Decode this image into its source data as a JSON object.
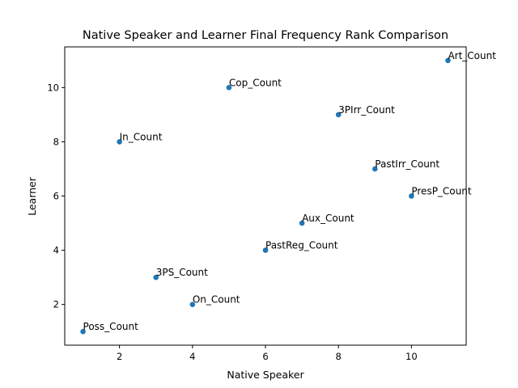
{
  "chart_data": {
    "type": "scatter",
    "title": "Native Speaker and Learner Final Frequency Rank Comparison",
    "xlabel": "Native Speaker",
    "ylabel": "Learner",
    "xlim": [
      0.5,
      11.5
    ],
    "ylim": [
      0.5,
      11.5
    ],
    "xticks": [
      2,
      4,
      6,
      8,
      10
    ],
    "yticks": [
      2,
      4,
      6,
      8,
      10
    ],
    "grid": false,
    "marker_color": "#1f77b4",
    "points": [
      {
        "label": "Poss_Count",
        "x": 1,
        "y": 1
      },
      {
        "label": "In_Count",
        "x": 2,
        "y": 8
      },
      {
        "label": "3PS_Count",
        "x": 3,
        "y": 3
      },
      {
        "label": "On_Count",
        "x": 4,
        "y": 2
      },
      {
        "label": "Cop_Count",
        "x": 5,
        "y": 10
      },
      {
        "label": "PastReg_Count",
        "x": 6,
        "y": 4
      },
      {
        "label": "Aux_Count",
        "x": 7,
        "y": 5
      },
      {
        "label": "3PIrr_Count",
        "x": 8,
        "y": 9
      },
      {
        "label": "PastIrr_Count",
        "x": 9,
        "y": 7
      },
      {
        "label": "PresP_Count",
        "x": 10,
        "y": 6
      },
      {
        "label": "Art_Count",
        "x": 11,
        "y": 11
      }
    ]
  }
}
